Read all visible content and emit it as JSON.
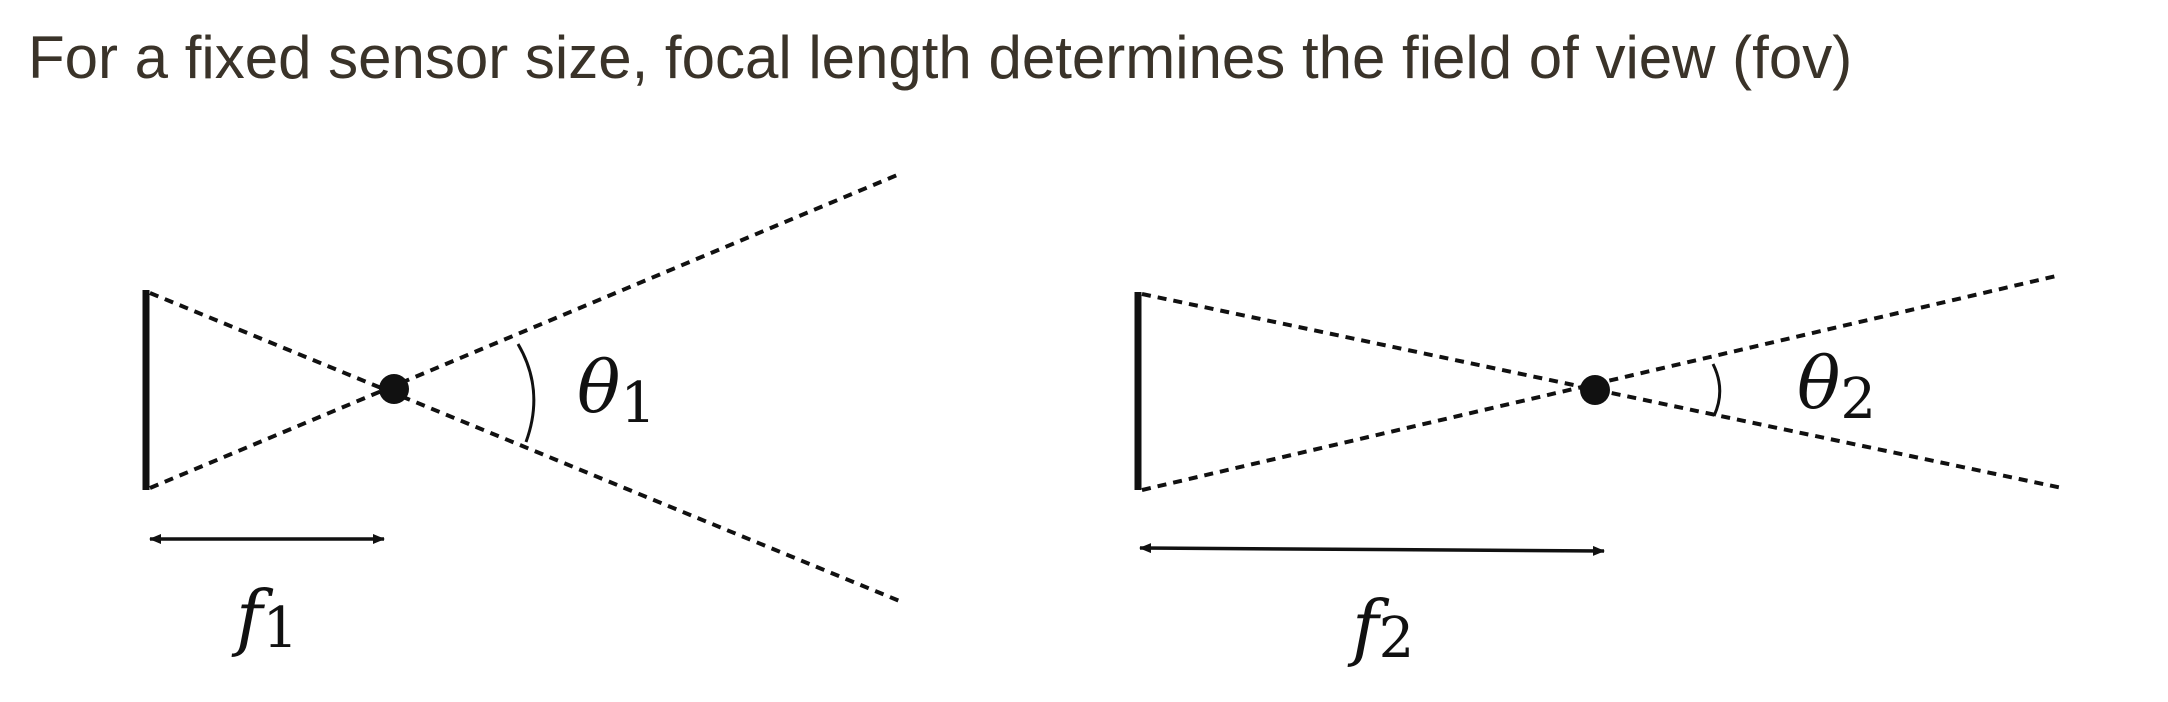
{
  "title": "For a fixed sensor size, focal length determines the field of view (fov)",
  "colors": {
    "title_text": "#3a3329",
    "lines": "#111111",
    "background": "#ffffff"
  },
  "diagrams": [
    {
      "angle_symbol": "θ",
      "angle_subscript": "1",
      "focal_symbol": "f",
      "focal_subscript": "1"
    },
    {
      "angle_symbol": "θ",
      "angle_subscript": "2",
      "focal_symbol": "f",
      "focal_subscript": "2"
    }
  ]
}
